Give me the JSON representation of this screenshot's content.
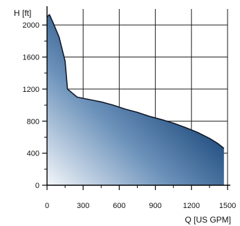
{
  "chart_data": {
    "type": "area",
    "title": "",
    "xlabel": "Q [US GPM]",
    "ylabel": "H [ft]",
    "xlim": [
      0,
      1500
    ],
    "ylim": [
      0,
      2200
    ],
    "x_ticks": [
      0,
      300,
      600,
      900,
      1200,
      1500
    ],
    "y_ticks": [
      0,
      400,
      800,
      1200,
      1600,
      2000
    ],
    "grid": true,
    "series": [
      {
        "x": [
          0,
          20,
          50,
          100,
          150,
          170,
          250,
          350,
          450,
          550,
          650,
          750,
          850,
          950,
          1050,
          1150,
          1250,
          1350,
          1420,
          1470
        ],
        "y": [
          2100,
          2130,
          2030,
          1850,
          1550,
          1200,
          1100,
          1070,
          1040,
          1000,
          950,
          910,
          860,
          820,
          775,
          720,
          660,
          585,
          520,
          460
        ]
      }
    ],
    "colors": {
      "fill_dark": "#1d3c70",
      "fill_mid": "#3b6fa3",
      "fill_light": "#e8eef6",
      "stroke": "#101828",
      "grid": "#1a1a1a"
    }
  }
}
